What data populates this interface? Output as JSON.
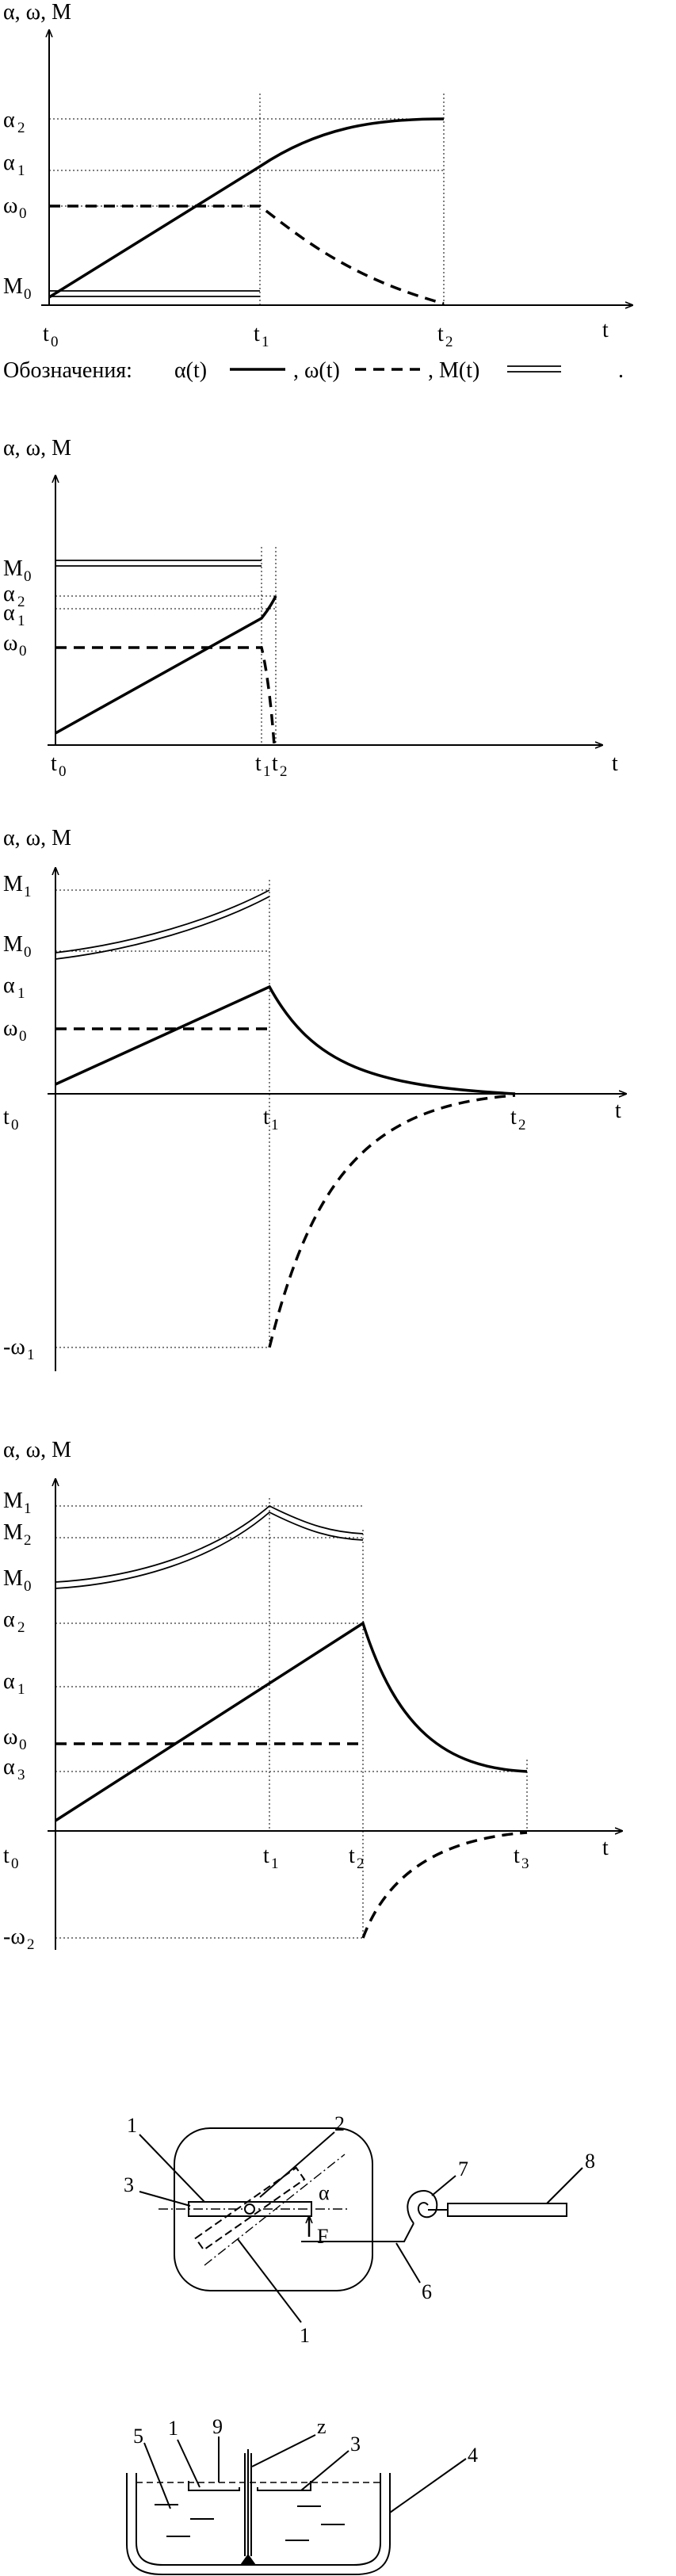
{
  "panel1": {
    "axis_title": "α, ω, M",
    "t_axis": "t",
    "y_labels": [
      {
        "base": "α",
        "sub": "2"
      },
      {
        "base": "α",
        "sub": "1"
      },
      {
        "base": "ω",
        "sub": "0"
      },
      {
        "base": "M",
        "sub": "0"
      }
    ],
    "x_labels": [
      {
        "base": "t",
        "sub": "0"
      },
      {
        "base": "t",
        "sub": "1"
      },
      {
        "base": "t",
        "sub": "2"
      }
    ],
    "legend": {
      "prefix": "Обозначения:",
      "alpha": "α(t)",
      "omega": ", ω(t)",
      "moment": ", M(t)",
      "end": "."
    }
  },
  "panel2": {
    "axis_title": "α, ω, M",
    "t_axis": "t",
    "y_labels": [
      {
        "base": "M",
        "sub": "0"
      },
      {
        "base": "α",
        "sub": "2"
      },
      {
        "base": "α",
        "sub": "1"
      },
      {
        "base": "ω",
        "sub": "0"
      }
    ],
    "x_labels": [
      {
        "base": "t",
        "sub": "0"
      },
      {
        "base": "t",
        "sub": "1"
      },
      {
        "base": "t",
        "sub": "2"
      }
    ]
  },
  "panel3": {
    "axis_title": "α, ω, M",
    "t_axis": "t",
    "y_labels": [
      {
        "base": "M",
        "sub": "1"
      },
      {
        "base": "M",
        "sub": "0"
      },
      {
        "base": "α",
        "sub": "1"
      },
      {
        "base": "ω",
        "sub": "0"
      },
      {
        "base": "-ω",
        "sub": "1"
      }
    ],
    "x_labels": [
      {
        "base": "t",
        "sub": "0"
      },
      {
        "base": "t",
        "sub": "1"
      },
      {
        "base": "t",
        "sub": "2"
      }
    ]
  },
  "panel4": {
    "axis_title": "α, ω, M",
    "t_axis": "t",
    "y_labels": [
      {
        "base": "M",
        "sub": "1"
      },
      {
        "base": "M",
        "sub": "2"
      },
      {
        "base": "M",
        "sub": "0"
      },
      {
        "base": "α",
        "sub": "2"
      },
      {
        "base": "α",
        "sub": "1"
      },
      {
        "base": "ω",
        "sub": "0"
      },
      {
        "base": "α",
        "sub": "3"
      },
      {
        "base": "-ω",
        "sub": "2"
      }
    ],
    "x_labels": [
      {
        "base": "t",
        "sub": "0"
      },
      {
        "base": "t",
        "sub": "1"
      },
      {
        "base": "t",
        "sub": "2"
      },
      {
        "base": "t",
        "sub": "3"
      }
    ]
  },
  "device_top": {
    "numbers": [
      "1",
      "2",
      "3",
      "1",
      "7",
      "8",
      "6"
    ],
    "alpha": "α",
    "force": "F"
  },
  "device_bottom": {
    "numbers": [
      "5",
      "1",
      "9",
      "z",
      "3",
      "4"
    ]
  }
}
